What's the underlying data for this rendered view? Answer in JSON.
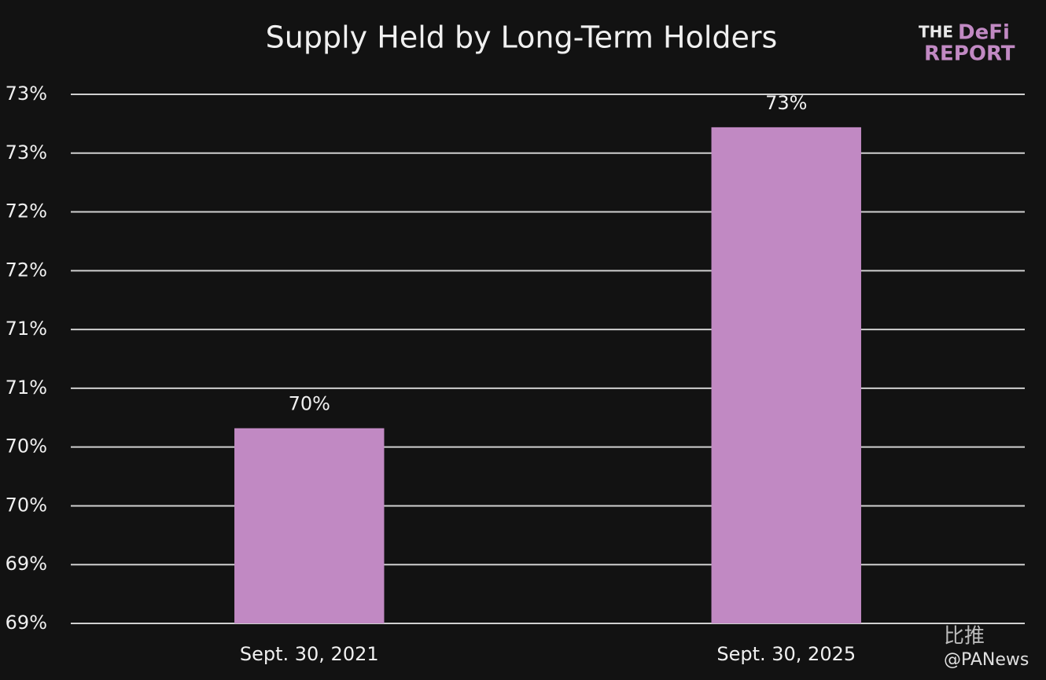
{
  "chart_data": {
    "type": "bar",
    "title": "Supply Held by Long-Term Holders",
    "categories": [
      "Sept. 30, 2021",
      "Sept. 30, 2025"
    ],
    "values": [
      70.46,
      73.02
    ],
    "value_labels": [
      "70%",
      "73%"
    ],
    "color": "#c189c3",
    "ylim": [
      68.8,
      73.3
    ],
    "yticks": [
      {
        "value": 68.8,
        "label": "69%"
      },
      {
        "value": 69.3,
        "label": "69%"
      },
      {
        "value": 69.8,
        "label": "70%"
      },
      {
        "value": 70.3,
        "label": "70%"
      },
      {
        "value": 70.8,
        "label": "71%"
      },
      {
        "value": 71.3,
        "label": "71%"
      },
      {
        "value": 71.8,
        "label": "72%"
      },
      {
        "value": 72.3,
        "label": "72%"
      },
      {
        "value": 72.8,
        "label": "73%"
      },
      {
        "value": 73.3,
        "label": "73%"
      }
    ],
    "grid": true
  },
  "logo": {
    "line1a": "THE",
    "line1b": "DeFi",
    "line2": "REPORT"
  },
  "watermark": {
    "brand": "比推",
    "handle": "@PANews"
  }
}
